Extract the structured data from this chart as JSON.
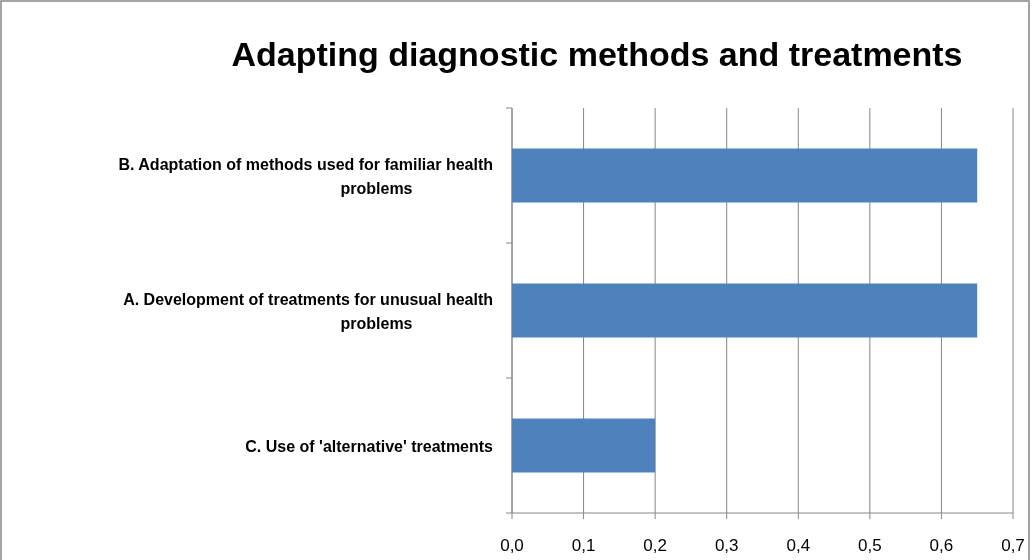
{
  "chart_data": {
    "type": "bar",
    "orientation": "horizontal",
    "title": "Adapting diagnostic methods and treatments",
    "categories": [
      "B. Adaptation of methods used for familiar health problems",
      "A. Development of treatments for unusual health problems",
      "C. Use of 'alternative' treatments"
    ],
    "values": [
      0.65,
      0.65,
      0.2
    ],
    "color": "#4f81bd",
    "xlim": [
      0,
      0.7
    ],
    "xticks": [
      {
        "value": 0,
        "label": "0,0"
      },
      {
        "value": 0.1,
        "label": "0,1"
      },
      {
        "value": 0.2,
        "label": "0,2"
      },
      {
        "value": 0.3,
        "label": "0,3"
      },
      {
        "value": 0.4,
        "label": "0,4"
      },
      {
        "value": 0.5,
        "label": "0,5"
      },
      {
        "value": 0.6,
        "label": "0,6"
      },
      {
        "value": 0.7,
        "label": "0,7"
      }
    ],
    "grid": "x"
  }
}
